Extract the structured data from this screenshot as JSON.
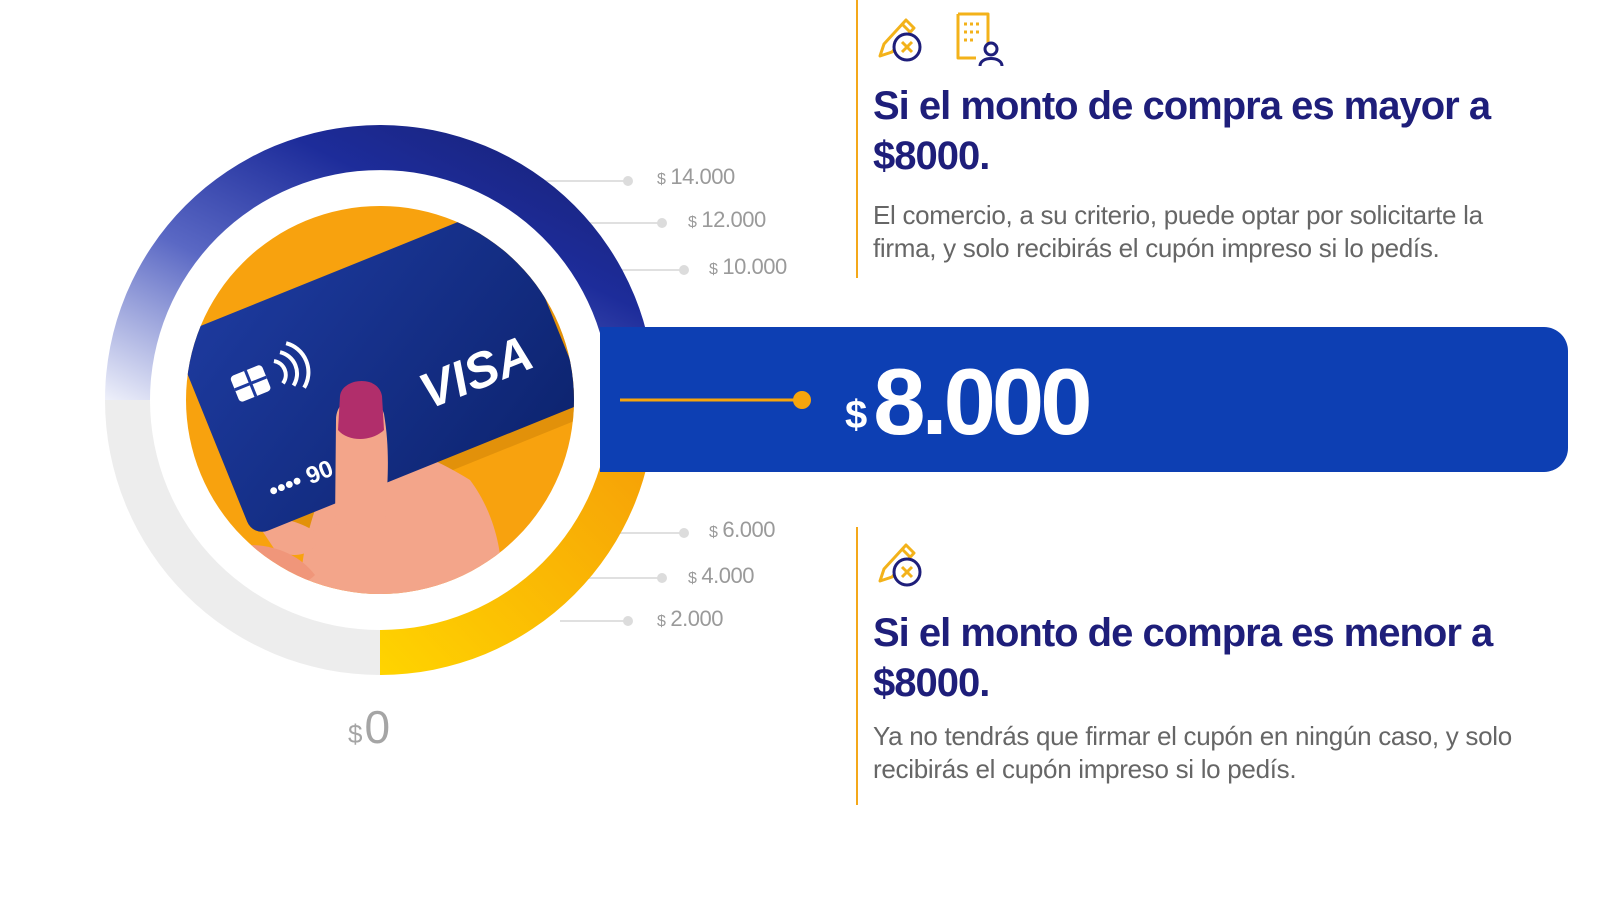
{
  "gauge": {
    "currency_symbol": "$",
    "ticks_upper": [
      "14.000",
      "12.000",
      "10.000"
    ],
    "ticks_lower": [
      "6.000",
      "4.000",
      "2.000"
    ],
    "zero": "0",
    "threshold_currency": "$",
    "threshold_value": "8.000",
    "card_brand": "VISA",
    "card_digits": "•••• 90",
    "colors": {
      "upper_arc": "#1b2a86",
      "lower_arc": "#f6a50d",
      "empty_arc": "#ededed",
      "banner": "#0d3fb3"
    }
  },
  "sections": [
    {
      "icons": [
        "signature-pen-icon",
        "receipt-user-icon"
      ],
      "title": "Si el monto de compra es mayor a $8000.",
      "text": "El comercio, a su criterio, puede optar por solicitarte la firma, y solo recibirás el cupón impreso si lo pedís."
    },
    {
      "icons": [
        "signature-pen-icon"
      ],
      "title": "Si el monto de compra es menor a $8000.",
      "text": "Ya no tendrás que firmar el cupón en ningún caso, y solo recibirás el cupón impreso si lo pedís."
    }
  ]
}
